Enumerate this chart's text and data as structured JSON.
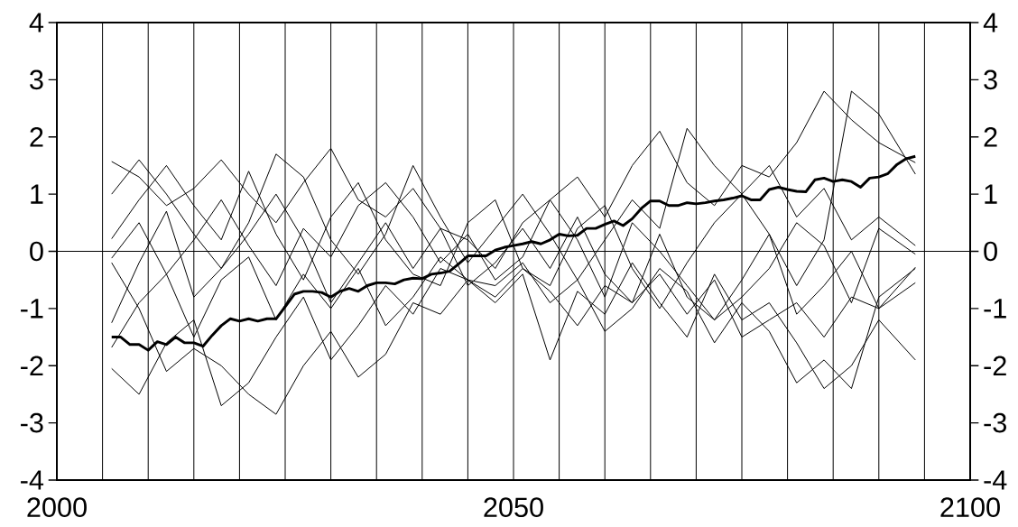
{
  "chart_data": {
    "type": "line",
    "x": [
      2006,
      2009,
      2012,
      2015,
      2018,
      2021,
      2024,
      2027,
      2030,
      2033,
      2036,
      2039,
      2042,
      2045,
      2048,
      2051,
      2054,
      2057,
      2060,
      2063,
      2066,
      2069,
      2072,
      2075,
      2078,
      2081,
      2084,
      2087,
      2090,
      2094
    ],
    "series": [
      {
        "color": "#000000",
        "values": [
          1.57,
          1.3,
          0.8,
          1.1,
          1.6,
          1.0,
          0.5,
          1.2,
          1.8,
          0.9,
          0.6,
          1.1,
          0.4,
          0.2,
          -0.3,
          0.5,
          0.9,
          1.3,
          0.6,
          1.5,
          2.1,
          1.2,
          0.8,
          1.5,
          1.3,
          1.9,
          2.8,
          2.3,
          1.9,
          1.55
        ]
      },
      {
        "color": "#000000",
        "values": [
          1.0,
          1.6,
          1.0,
          0.3,
          -0.3,
          0.5,
          1.7,
          1.3,
          0.2,
          -0.4,
          0.3,
          1.5,
          0.6,
          -0.2,
          0.4,
          1.0,
          0.3,
          -0.5,
          0.2,
          0.9,
          0.4,
          2.15,
          1.5,
          1.0,
          0.3,
          -0.6,
          0.2,
          2.8,
          2.4,
          1.35
        ]
      },
      {
        "color": "#000000",
        "values": [
          0.22,
          0.9,
          1.5,
          0.8,
          0.2,
          1.4,
          0.3,
          -0.5,
          0.6,
          1.2,
          0.2,
          -0.4,
          -0.6,
          0.5,
          0.9,
          -0.3,
          -0.6,
          0.4,
          0.8,
          -0.3,
          -1.0,
          -0.2,
          0.5,
          1.0,
          1.5,
          0.6,
          1.1,
          0.2,
          0.6,
          0.1
        ]
      },
      {
        "color": "#000000",
        "values": [
          -0.12,
          0.5,
          -0.4,
          0.2,
          0.9,
          0.1,
          -0.6,
          0.4,
          -0.1,
          0.8,
          1.2,
          0.6,
          -0.2,
          0.3,
          -0.5,
          -0.1,
          0.9,
          0.2,
          -0.8,
          0.5,
          0.0,
          -0.6,
          -1.2,
          -0.8,
          -0.3,
          0.5,
          0.1,
          -0.9,
          0.4,
          -0.05
        ]
      },
      {
        "color": "#000000",
        "values": [
          -1.25,
          -0.2,
          0.7,
          -0.8,
          -0.3,
          0.3,
          1.0,
          0.2,
          -0.9,
          -0.2,
          0.5,
          -0.3,
          0.4,
          -0.6,
          -0.2,
          0.4,
          -0.3,
          0.6,
          -0.4,
          -0.9,
          0.3,
          -0.8,
          -1.2,
          -0.5,
          0.3,
          -1.1,
          -0.6,
          0.0,
          -1.0,
          -0.28
        ]
      },
      {
        "color": "#000000",
        "values": [
          -1.68,
          -0.9,
          -0.4,
          -1.5,
          -0.5,
          -0.1,
          -1.2,
          -0.4,
          -1.0,
          -0.3,
          -1.3,
          -0.8,
          -0.1,
          -0.5,
          -0.8,
          -0.3,
          -0.7,
          -1.3,
          -0.6,
          -0.9,
          -0.4,
          -1.1,
          -0.5,
          -1.5,
          -1.2,
          -0.9,
          -1.5,
          -0.8,
          -1.0,
          -0.55
        ]
      },
      {
        "color": "#000000",
        "values": [
          -2.05,
          -2.5,
          -1.6,
          -1.2,
          -2.7,
          -2.3,
          -1.5,
          -0.8,
          -1.9,
          -1.3,
          -0.6,
          -1.1,
          -0.3,
          -0.5,
          -0.9,
          -0.4,
          -1.9,
          -0.7,
          -1.1,
          -0.2,
          -0.9,
          -1.5,
          -0.4,
          -1.2,
          -0.9,
          -1.6,
          -2.4,
          -2.0,
          -1.2,
          -1.9
        ]
      },
      {
        "color": "#000000",
        "values": [
          -0.2,
          -1.0,
          -2.1,
          -1.7,
          -2.0,
          -2.5,
          -2.85,
          -2.0,
          -1.4,
          -2.2,
          -1.8,
          -0.9,
          -1.1,
          -0.5,
          -0.6,
          -0.2,
          -0.9,
          -0.5,
          -1.4,
          -1.0,
          -0.3,
          -0.7,
          -1.6,
          -0.9,
          -1.4,
          -2.3,
          -1.9,
          -2.4,
          -0.8,
          -0.3
        ]
      },
      {
        "color": "#000000",
        "x": [
          2006,
          2007,
          2008,
          2009,
          2010,
          2011,
          2012,
          2013,
          2014,
          2015,
          2016,
          2017,
          2018,
          2019,
          2020,
          2021,
          2022,
          2023,
          2024,
          2025,
          2026,
          2027,
          2028,
          2029,
          2030,
          2031,
          2032,
          2033,
          2034,
          2035,
          2036,
          2037,
          2038,
          2039,
          2040,
          2041,
          2042,
          2043,
          2044,
          2045,
          2046,
          2047,
          2048,
          2049,
          2050,
          2051,
          2052,
          2053,
          2054,
          2055,
          2056,
          2057,
          2058,
          2059,
          2060,
          2061,
          2062,
          2063,
          2064,
          2065,
          2066,
          2067,
          2068,
          2069,
          2070,
          2071,
          2072,
          2073,
          2074,
          2075,
          2076,
          2077,
          2078,
          2079,
          2080,
          2081,
          2082,
          2083,
          2084,
          2085,
          2086,
          2087,
          2088,
          2089,
          2090,
          2091,
          2092,
          2093,
          2094
        ],
        "values": [
          -1.5,
          -1.5,
          -1.63,
          -1.63,
          -1.73,
          -1.58,
          -1.63,
          -1.5,
          -1.6,
          -1.6,
          -1.66,
          -1.47,
          -1.3,
          -1.18,
          -1.22,
          -1.18,
          -1.22,
          -1.18,
          -1.18,
          -0.97,
          -0.75,
          -0.7,
          -0.7,
          -0.72,
          -0.8,
          -0.7,
          -0.65,
          -0.7,
          -0.6,
          -0.55,
          -0.55,
          -0.57,
          -0.5,
          -0.47,
          -0.48,
          -0.4,
          -0.38,
          -0.35,
          -0.22,
          -0.08,
          -0.08,
          -0.08,
          0.02,
          0.07,
          0.1,
          0.13,
          0.17,
          0.13,
          0.2,
          0.3,
          0.27,
          0.28,
          0.4,
          0.4,
          0.47,
          0.53,
          0.45,
          0.57,
          0.75,
          0.88,
          0.88,
          0.8,
          0.8,
          0.85,
          0.83,
          0.85,
          0.88,
          0.9,
          0.93,
          0.97,
          0.9,
          0.9,
          1.08,
          1.12,
          1.08,
          1.05,
          1.04,
          1.25,
          1.28,
          1.22,
          1.25,
          1.22,
          1.12,
          1.28,
          1.3,
          1.36,
          1.52,
          1.62,
          1.66
        ]
      }
    ],
    "xlim": [
      2000,
      2100
    ],
    "xticks": [
      2000,
      {
        "value": 2005,
        "label": null
      },
      {
        "value": 2010,
        "label": null
      },
      {
        "value": 2015,
        "label": null
      },
      {
        "value": 2020,
        "label": null
      },
      {
        "value": 2025,
        "label": null
      },
      {
        "value": 2030,
        "label": null
      },
      {
        "value": 2035,
        "label": null
      },
      {
        "value": 2040,
        "label": null
      },
      {
        "value": 2045,
        "label": null
      },
      2050,
      {
        "value": 2055,
        "label": null
      },
      {
        "value": 2060,
        "label": null
      },
      {
        "value": 2065,
        "label": null
      },
      {
        "value": 2070,
        "label": null
      },
      {
        "value": 2075,
        "label": null
      },
      {
        "value": 2080,
        "label": null
      },
      {
        "value": 2085,
        "label": null
      },
      {
        "value": 2090,
        "label": null
      },
      {
        "value": 2095,
        "label": null
      },
      2100
    ],
    "ylim": [
      -4,
      4
    ],
    "yticks": [
      -4,
      -3,
      -2,
      -1,
      0,
      1,
      2,
      3,
      4
    ],
    "y2lim": [
      -4,
      4
    ],
    "y2ticks": [
      -4,
      -3,
      -2,
      -1,
      0,
      1,
      2,
      3,
      4
    ],
    "grid": "x",
    "ref_lines": [
      {
        "axis": "y",
        "value": 0
      }
    ]
  }
}
